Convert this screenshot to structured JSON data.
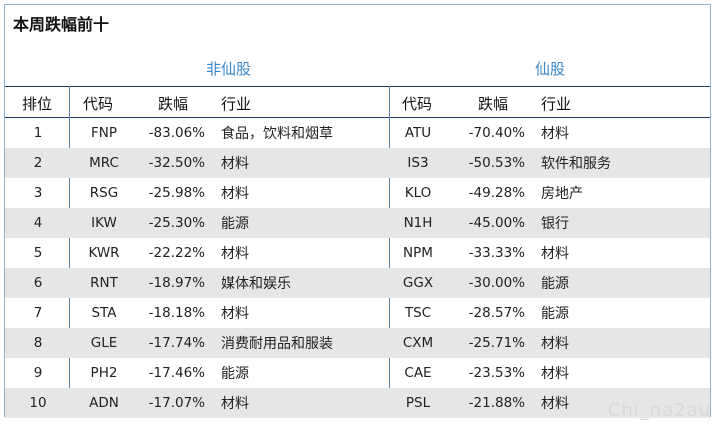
{
  "title": "本周跌幅前十",
  "groups": {
    "left": "非仙股",
    "right": "仙股"
  },
  "headers": {
    "rank": "排位",
    "left_code": "代码",
    "left_change": "跌幅",
    "left_industry": "行业",
    "right_code": "代码",
    "right_change": "跌幅",
    "right_industry": "行业"
  },
  "rows": [
    {
      "rank": "1",
      "lcode": "FNP",
      "lchg": "-83.06%",
      "lind": "食品，饮料和烟草",
      "rcode": "ATU",
      "rchg": "-70.40%",
      "rind": "材料"
    },
    {
      "rank": "2",
      "lcode": "MRC",
      "lchg": "-32.50%",
      "lind": "材料",
      "rcode": "IS3",
      "rchg": "-50.53%",
      "rind": "软件和服务"
    },
    {
      "rank": "3",
      "lcode": "RSG",
      "lchg": "-25.98%",
      "lind": "材料",
      "rcode": "KLO",
      "rchg": "-49.28%",
      "rind": "房地产"
    },
    {
      "rank": "4",
      "lcode": "IKW",
      "lchg": "-25.30%",
      "lind": "能源",
      "rcode": "N1H",
      "rchg": "-45.00%",
      "rind": "银行"
    },
    {
      "rank": "5",
      "lcode": "KWR",
      "lchg": "-22.22%",
      "lind": "材料",
      "rcode": "NPM",
      "rchg": "-33.33%",
      "rind": "材料"
    },
    {
      "rank": "6",
      "lcode": "RNT",
      "lchg": "-18.97%",
      "lind": "媒体和娱乐",
      "rcode": "GGX",
      "rchg": "-30.00%",
      "rind": "能源"
    },
    {
      "rank": "7",
      "lcode": "STA",
      "lchg": "-18.18%",
      "lind": "材料",
      "rcode": "TSC",
      "rchg": "-28.57%",
      "rind": "能源"
    },
    {
      "rank": "8",
      "lcode": "GLE",
      "lchg": "-17.74%",
      "lind": "消费耐用品和服装",
      "rcode": "CXM",
      "rchg": "-25.71%",
      "rind": "材料"
    },
    {
      "rank": "9",
      "lcode": "PH2",
      "lchg": "-17.46%",
      "lind": "能源",
      "rcode": "CAE",
      "rchg": "-23.53%",
      "rind": "材料"
    },
    {
      "rank": "10",
      "lcode": "ADN",
      "lchg": "-17.07%",
      "lind": "材料",
      "rcode": "PSL",
      "rchg": "-21.88%",
      "rind": "材料"
    }
  ],
  "watermark": "Chi_na2au"
}
